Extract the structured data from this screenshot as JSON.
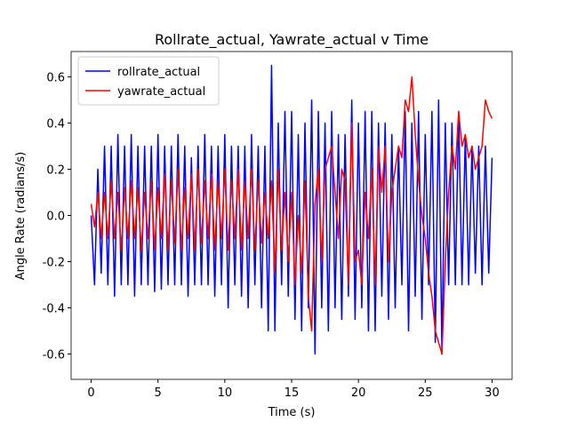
{
  "chart_data": {
    "type": "line",
    "title": "Rollrate_actual, Yawrate_actual  v Time",
    "xlabel": "Time (s)",
    "ylabel": "Angle Rate (radians/s)",
    "x": [
      0,
      0.25,
      0.5,
      0.75,
      1,
      1.25,
      1.5,
      1.75,
      2,
      2.25,
      2.5,
      2.75,
      3,
      3.25,
      3.5,
      3.75,
      4,
      4.25,
      4.5,
      4.75,
      5,
      5.25,
      5.5,
      5.75,
      6,
      6.25,
      6.5,
      6.75,
      7,
      7.25,
      7.5,
      7.75,
      8,
      8.25,
      8.5,
      8.75,
      9,
      9.25,
      9.5,
      9.75,
      10,
      10.25,
      10.5,
      10.75,
      11,
      11.25,
      11.5,
      11.75,
      12,
      12.25,
      12.5,
      12.75,
      13,
      13.25,
      13.5,
      13.75,
      14,
      14.25,
      14.5,
      14.75,
      15,
      15.25,
      15.5,
      15.75,
      16,
      16.25,
      16.5,
      16.75,
      17,
      17.25,
      17.5,
      17.75,
      18,
      18.25,
      18.5,
      18.75,
      19,
      19.25,
      19.5,
      19.75,
      20,
      20.25,
      20.5,
      20.75,
      21,
      21.25,
      21.5,
      21.75,
      22,
      22.25,
      22.5,
      22.75,
      23,
      23.25,
      23.5,
      23.75,
      24,
      24.25,
      24.5,
      24.75,
      25,
      25.25,
      25.5,
      25.75,
      26,
      26.25,
      26.5,
      26.75,
      27,
      27.25,
      27.5,
      27.75,
      28,
      28.25,
      28.5,
      28.75,
      29,
      29.25,
      29.5,
      29.75,
      30
    ],
    "series": [
      {
        "name": "rollrate_actual",
        "color": "#0000ff",
        "values": [
          0.0,
          -0.3,
          0.2,
          -0.25,
          0.3,
          -0.3,
          0.3,
          -0.35,
          0.35,
          -0.3,
          0.3,
          -0.3,
          0.35,
          -0.35,
          0.3,
          -0.3,
          0.3,
          -0.3,
          0.3,
          -0.33,
          0.35,
          -0.32,
          0.3,
          -0.3,
          0.3,
          -0.3,
          0.35,
          -0.3,
          0.3,
          -0.35,
          0.25,
          -0.3,
          0.3,
          -0.3,
          0.35,
          -0.3,
          0.3,
          -0.35,
          0.3,
          -0.3,
          0.35,
          -0.4,
          0.3,
          -0.3,
          0.3,
          -0.35,
          0.3,
          -0.4,
          0.35,
          -0.3,
          0.3,
          -0.4,
          0.3,
          -0.5,
          0.65,
          -0.5,
          0.4,
          -0.3,
          0.45,
          -0.35,
          0.45,
          -0.45,
          0.35,
          -0.5,
          0.4,
          -0.4,
          0.5,
          -0.6,
          0.45,
          -0.4,
          0.4,
          -0.5,
          0.45,
          -0.4,
          0.35,
          -0.45,
          0.35,
          -0.35,
          0.5,
          -0.45,
          0.4,
          -0.4,
          0.45,
          -0.5,
          0.45,
          -0.5,
          0.4,
          -0.35,
          0.4,
          -0.45,
          0.35,
          -0.4,
          0.3,
          -0.3,
          0.45,
          -0.5,
          0.4,
          -0.35,
          0.45,
          -0.45,
          0.35,
          -0.3,
          0.45,
          -0.55,
          0.5,
          -0.6,
          0.4,
          -0.3,
          0.4,
          -0.3,
          0.45,
          -0.3,
          0.35,
          -0.3,
          0.3,
          -0.25,
          0.3,
          -0.3,
          0.3,
          -0.25,
          0.25
        ]
      },
      {
        "name": "yawrate_actual",
        "color": "#ff0000",
        "values": [
          0.05,
          -0.05,
          0.1,
          -0.1,
          0.1,
          -0.1,
          0.15,
          -0.1,
          0.1,
          -0.15,
          0.12,
          -0.1,
          0.15,
          -0.1,
          0.12,
          -0.15,
          0.1,
          -0.1,
          0.15,
          -0.15,
          0.12,
          -0.1,
          0.18,
          -0.15,
          0.15,
          -0.12,
          0.2,
          -0.15,
          0.12,
          -0.1,
          0.18,
          -0.15,
          0.2,
          -0.12,
          0.15,
          -0.1,
          0.18,
          -0.15,
          0.15,
          -0.1,
          0.2,
          -0.15,
          0.15,
          -0.1,
          0.2,
          -0.15,
          0.15,
          -0.1,
          0.2,
          -0.15,
          0.15,
          -0.12,
          0.1,
          -0.1,
          0.15,
          -0.25,
          0.2,
          -0.15,
          0.1,
          -0.2,
          0.1,
          -0.3,
          0.0,
          -0.25,
          0.15,
          -0.35,
          -0.5,
          0.05,
          0.2,
          -0.2,
          0.2,
          0.25,
          0.3,
          0.1,
          -0.1,
          0.2,
          0.15,
          -0.3,
          0.4,
          -0.2,
          -0.15,
          -0.3,
          0.1,
          -0.1,
          0.2,
          -0.3,
          0.3,
          0.1,
          0.3,
          -0.2,
          0.1,
          0.2,
          0.3,
          0.25,
          0.5,
          0.45,
          0.6,
          0.35,
          0.15,
          0.0,
          -0.1,
          -0.25,
          -0.35,
          -0.5,
          -0.55,
          -0.6,
          -0.2,
          0.1,
          0.3,
          0.2,
          0.45,
          0.3,
          0.35,
          0.25,
          0.3,
          0.2,
          0.25,
          0.3,
          0.5,
          0.45,
          0.42
        ]
      }
    ],
    "xlim": [
      -1.5,
      31.5
    ],
    "ylim": [
      -0.71,
      0.71
    ],
    "xticks": [
      0,
      5,
      10,
      15,
      20,
      25,
      30
    ],
    "yticks": [
      -0.6,
      -0.4,
      -0.2,
      {
        "value": 0,
        "label": "0.0"
      },
      0.2,
      0.4,
      0.6
    ],
    "legend": "upper left"
  }
}
